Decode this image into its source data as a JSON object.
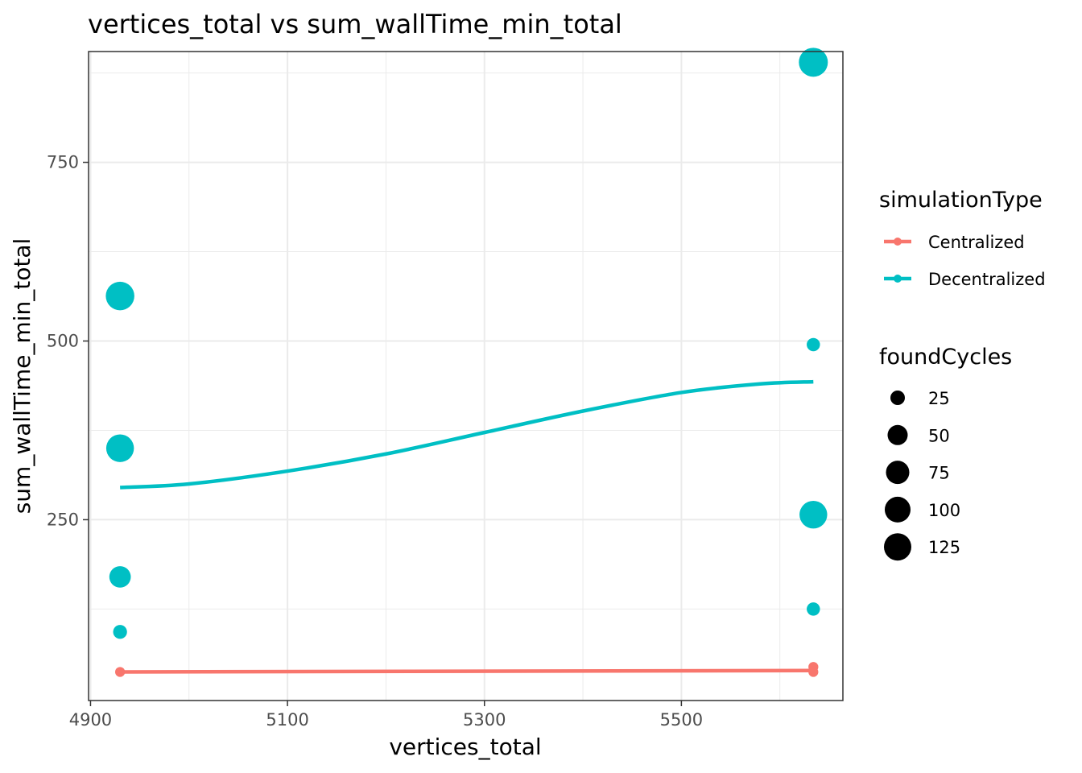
{
  "chart_data": {
    "type": "scatter",
    "title": "vertices_total  vs  sum_wallTime_min_total",
    "xlabel": "vertices_total",
    "ylabel": "sum_wallTime_min_total",
    "xlim": [
      4898,
      5664
    ],
    "ylim": [
      -3,
      905
    ],
    "x_ticks": [
      4900,
      5100,
      5300,
      5500
    ],
    "y_ticks": [
      250,
      500,
      750
    ],
    "x_minor_ticks": [
      5000,
      5200,
      5400,
      5600
    ],
    "y_minor_ticks": [
      125,
      375,
      625,
      875
    ],
    "grid": true,
    "legend_position": "right",
    "legends": {
      "color": {
        "title": "simulationType",
        "entries": [
          {
            "name": "Centralized",
            "color": "#F8766D"
          },
          {
            "name": "Decentralized",
            "color": "#00BFC4"
          }
        ]
      },
      "size": {
        "title": "foundCycles",
        "entries": [
          {
            "label": "25",
            "value": 25
          },
          {
            "label": "50",
            "value": 50
          },
          {
            "label": "75",
            "value": 75
          },
          {
            "label": "100",
            "value": 100
          },
          {
            "label": "125",
            "value": 125
          }
        ]
      }
    },
    "series": [
      {
        "name": "Centralized",
        "color": "#F8766D",
        "points": [
          {
            "x": 4930,
            "y": 37,
            "size": 3
          },
          {
            "x": 5634,
            "y": 37,
            "size": 3
          },
          {
            "x": 5634,
            "y": 44,
            "size": 3
          }
        ],
        "trend": [
          {
            "x": 4930,
            "y": 37
          },
          {
            "x": 5634,
            "y": 39
          }
        ]
      },
      {
        "name": "Decentralized",
        "color": "#00BFC4",
        "points": [
          {
            "x": 4930,
            "y": 563,
            "size": 125
          },
          {
            "x": 4930,
            "y": 350,
            "size": 115
          },
          {
            "x": 4930,
            "y": 170,
            "size": 55
          },
          {
            "x": 4930,
            "y": 93,
            "size": 12
          },
          {
            "x": 5634,
            "y": 890,
            "size": 130
          },
          {
            "x": 5634,
            "y": 257,
            "size": 115
          },
          {
            "x": 5634,
            "y": 495,
            "size": 10
          },
          {
            "x": 5634,
            "y": 125,
            "size": 10
          }
        ],
        "trend": [
          {
            "x": 4930,
            "y": 295
          },
          {
            "x": 5000,
            "y": 300
          },
          {
            "x": 5100,
            "y": 318
          },
          {
            "x": 5200,
            "y": 342
          },
          {
            "x": 5300,
            "y": 372
          },
          {
            "x": 5400,
            "y": 402
          },
          {
            "x": 5500,
            "y": 428
          },
          {
            "x": 5580,
            "y": 440
          },
          {
            "x": 5634,
            "y": 443
          }
        ]
      }
    ]
  }
}
